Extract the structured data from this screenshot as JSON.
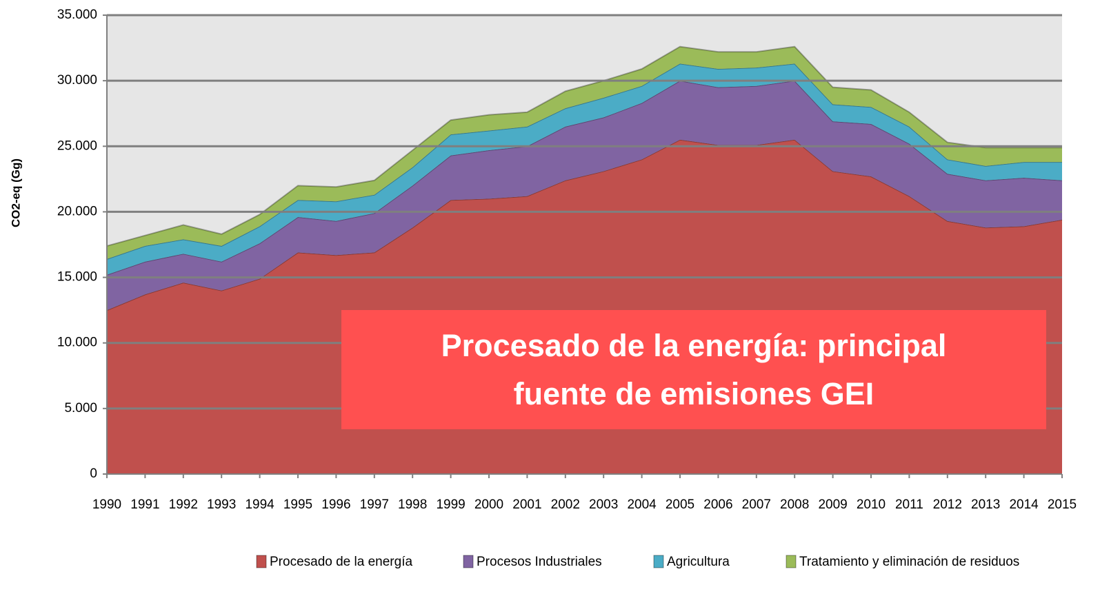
{
  "chart_data": {
    "type": "stacked-area",
    "y_label": "CO2-eq (Gg)",
    "annotation": "Procesado de la energía: principal fuente de emisiones GEI",
    "categories": [
      "1990",
      "1991",
      "1992",
      "1993",
      "1994",
      "1995",
      "1996",
      "1997",
      "1998",
      "1999",
      "2000",
      "2001",
      "2002",
      "2003",
      "2004",
      "2005",
      "2006",
      "2007",
      "2008",
      "2009",
      "2010",
      "2011",
      "2012",
      "2013",
      "2014",
      "2015"
    ],
    "series": [
      {
        "name": "Procesado de la energía",
        "color": "#c0504d",
        "values": [
          12500,
          13700,
          14600,
          14000,
          14900,
          16900,
          16700,
          16900,
          18800,
          20900,
          21000,
          21200,
          22400,
          23100,
          24000,
          25500,
          25100,
          25100,
          25500,
          23100,
          22700,
          21200,
          19300,
          18800,
          18900,
          19400
        ]
      },
      {
        "name": "Procesos Industriales",
        "color": "#8064a2",
        "values": [
          2700,
          2500,
          2200,
          2200,
          2700,
          2700,
          2600,
          3000,
          3200,
          3400,
          3700,
          3800,
          4100,
          4100,
          4300,
          4500,
          4400,
          4500,
          4500,
          3800,
          4000,
          4000,
          3600,
          3600,
          3700,
          3000
        ]
      },
      {
        "name": "Agricultura",
        "color": "#4bacc6",
        "values": [
          1200,
          1200,
          1100,
          1200,
          1300,
          1300,
          1500,
          1400,
          1400,
          1600,
          1500,
          1500,
          1400,
          1500,
          1300,
          1300,
          1400,
          1400,
          1300,
          1300,
          1300,
          1300,
          1100,
          1100,
          1200,
          1400
        ]
      },
      {
        "name": "Tratamiento y eliminación de residuos",
        "color": "#9bbb59",
        "values": [
          1000,
          800,
          1100,
          900,
          900,
          1100,
          1100,
          1100,
          1300,
          1100,
          1200,
          1100,
          1300,
          1300,
          1300,
          1300,
          1300,
          1200,
          1300,
          1300,
          1300,
          1100,
          1300,
          1400,
          1100,
          1100
        ]
      }
    ],
    "ylim": [
      0,
      35000
    ],
    "yticks": [
      0,
      {
        "value": 5000,
        "label": "5.000"
      },
      {
        "value": 10000,
        "label": "10.000"
      },
      {
        "value": 15000,
        "label": "15.000"
      },
      {
        "value": 20000,
        "label": "20.000"
      },
      {
        "value": 25000,
        "label": "25.000"
      },
      {
        "value": 30000,
        "label": "30.000"
      },
      {
        "value": 35000,
        "label": "35.000"
      }
    ],
    "grid": true
  }
}
